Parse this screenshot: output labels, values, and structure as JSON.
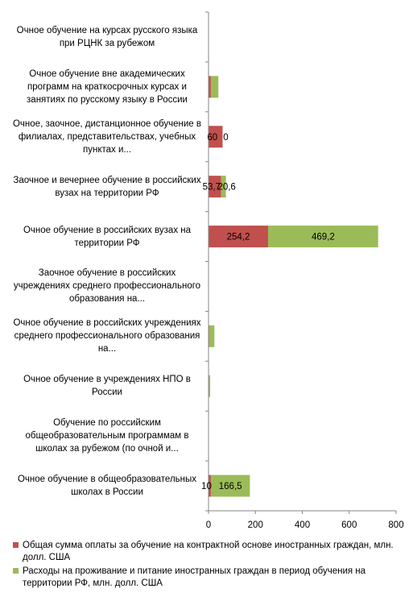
{
  "chart_data": {
    "type": "bar",
    "orientation": "horizontal",
    "stacked": true,
    "categories": [
      "Очное обучение на курсах русского языка при РЦНК за рубежом",
      "Очное обучение вне академических программ на краткосрочных курсах и занятиях по русскому языку в России",
      "Очное, заочное, дистанционное обучение в филиалах, представительствах, учебных пунктах и...",
      "Заочное и вечернее  обучение в российских вузах на территории РФ",
      "Очное обучение в российских вузах на территории РФ",
      "Заочное  обучение в российских учреждениях среднего профессионального образования на...",
      "Очное обучение в российских учреждениях среднего профессионального образования на...",
      "Очное обучение в учреждениях НПО в России",
      "Обучение по российским общеобразовательным программам в школах за рубежом (по очной и...",
      "Очное обучение в общеобразовательных школах в России"
    ],
    "series": [
      {
        "name": "Общая сумма оплаты за обучение на контрактной основе иностранных граждан, млн. долл. США",
        "color": "#c0504d",
        "values": [
          0,
          10,
          60,
          53.7,
          254.2,
          0,
          3,
          0,
          0,
          10
        ],
        "labels": [
          "",
          "",
          "60",
          "53,7",
          "254,2",
          "",
          "",
          "",
          "",
          "10"
        ]
      },
      {
        "name": "Расходы на проживание и питание иностранных граждан в период обучения на территории РФ, млн. долл. США",
        "color": "#9bbb59",
        "values": [
          0,
          32,
          0,
          20.6,
          469.2,
          0,
          22,
          7,
          0,
          166.5
        ],
        "labels": [
          "",
          "",
          "0",
          "20,6",
          "469,2",
          "",
          "",
          "",
          "",
          "166,5"
        ]
      }
    ],
    "xlim": [
      0,
      800
    ],
    "xticks": [
      "0",
      "200",
      "400",
      "600",
      "800"
    ],
    "grid": false,
    "legend_position": "bottom"
  }
}
